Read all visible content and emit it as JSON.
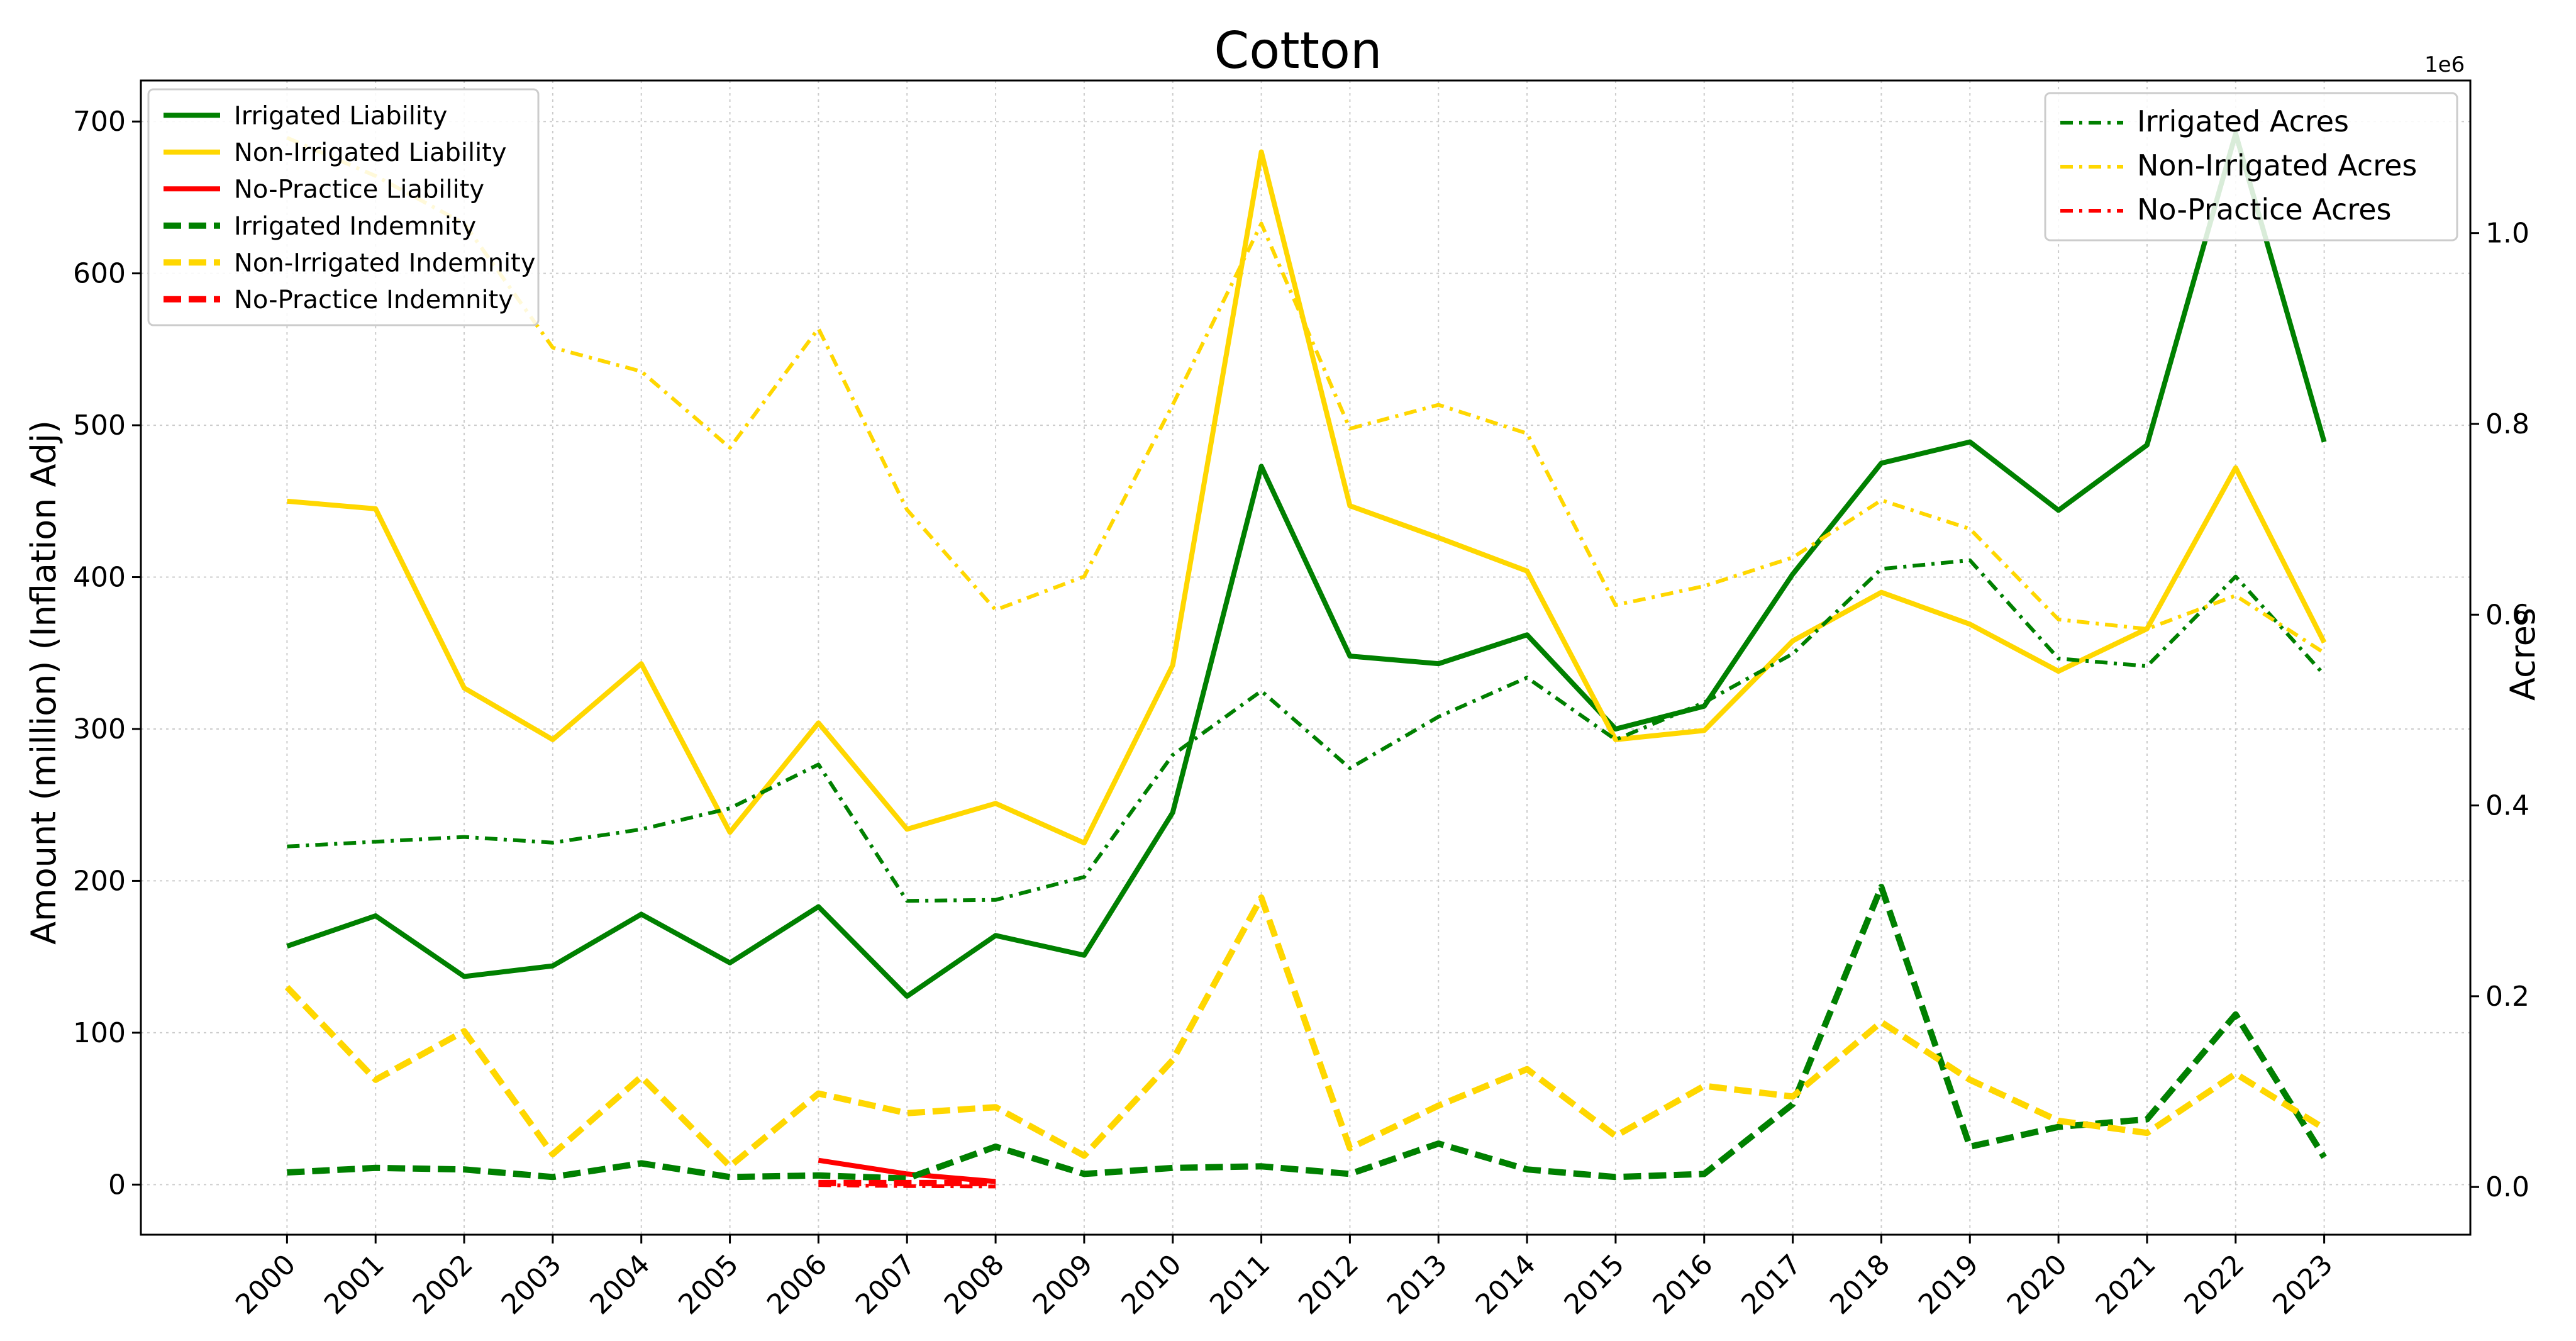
{
  "chart_data": {
    "type": "line",
    "title": "Cotton",
    "xlabel": "",
    "ylabel": "Amount (million) (Inflation Adj)",
    "y2label": "Acres",
    "y2_offset_text": "1e6",
    "ylim": [
      -33,
      727
    ],
    "y2lim": [
      -50000,
      1160000
    ],
    "y2_scale": 1000000,
    "grid": true,
    "x": [
      2000,
      2001,
      2002,
      2003,
      2004,
      2005,
      2006,
      2007,
      2008,
      2009,
      2010,
      2011,
      2012,
      2013,
      2014,
      2015,
      2016,
      2017,
      2018,
      2019,
      2020,
      2021,
      2022,
      2023
    ],
    "x_tick_labels": [
      "2000",
      "2001",
      "2002",
      "2003",
      "2004",
      "2005",
      "2006",
      "2007",
      "2008",
      "2009",
      "2010",
      "2011",
      "2012",
      "2013",
      "2014",
      "2015",
      "2016",
      "2017",
      "2018",
      "2019",
      "2020",
      "2021",
      "2022",
      "2023"
    ],
    "y_ticks": [
      0,
      100,
      200,
      300,
      400,
      500,
      600,
      700
    ],
    "y_tick_labels": [
      "0",
      "100",
      "200",
      "300",
      "400",
      "500",
      "600",
      "700"
    ],
    "y2_ticks": [
      0,
      200000,
      400000,
      600000,
      800000,
      1000000
    ],
    "y2_tick_labels": [
      "0.0",
      "0.2",
      "0.4",
      "0.6",
      "0.8",
      "1.0"
    ],
    "legend_left_position": "upper-left",
    "legend_right_position": "upper-right",
    "series": [
      {
        "name": "Irrigated Liability",
        "axis": "left",
        "color": "#008000",
        "style": "solid",
        "x": [
          2000,
          2001,
          2002,
          2003,
          2004,
          2005,
          2006,
          2007,
          2008,
          2009,
          2010,
          2011,
          2012,
          2013,
          2014,
          2015,
          2016,
          2017,
          2018,
          2019,
          2020,
          2021,
          2022,
          2023
        ],
        "values": [
          157,
          177,
          137,
          144,
          178,
          146,
          183,
          124,
          164,
          151,
          245,
          473,
          348,
          343,
          362,
          300,
          315,
          402,
          475,
          489,
          444,
          487,
          692,
          489
        ]
      },
      {
        "name": "Non-Irrigated Liability",
        "axis": "left",
        "color": "#FFD700",
        "style": "solid",
        "x": [
          2000,
          2001,
          2002,
          2003,
          2004,
          2005,
          2006,
          2007,
          2008,
          2009,
          2010,
          2011,
          2012,
          2013,
          2014,
          2015,
          2016,
          2017,
          2018,
          2019,
          2020,
          2021,
          2022,
          2023
        ],
        "values": [
          450,
          445,
          327,
          293,
          343,
          232,
          304,
          234,
          251,
          225,
          342,
          680,
          447,
          426,
          404,
          293,
          299,
          358,
          390,
          369,
          338,
          366,
          472,
          357
        ]
      },
      {
        "name": "No-Practice Liability",
        "axis": "left",
        "color": "#FF0000",
        "style": "solid",
        "x": [
          2006,
          2007,
          2008
        ],
        "values": [
          16,
          7,
          2
        ]
      },
      {
        "name": "Irrigated Indemnity",
        "axis": "left",
        "color": "#008000",
        "style": "dashed",
        "x": [
          2000,
          2001,
          2002,
          2003,
          2004,
          2005,
          2006,
          2007,
          2008,
          2009,
          2010,
          2011,
          2012,
          2013,
          2014,
          2015,
          2016,
          2017,
          2018,
          2019,
          2020,
          2021,
          2022,
          2023
        ],
        "values": [
          8,
          11,
          10,
          5,
          14,
          5,
          6,
          4,
          25,
          7,
          11,
          12,
          7,
          27,
          10,
          5,
          7,
          53,
          196,
          25,
          38,
          43,
          112,
          18
        ]
      },
      {
        "name": "Non-Irrigated Indemnity",
        "axis": "left",
        "color": "#FFD700",
        "style": "dashed",
        "x": [
          2000,
          2001,
          2002,
          2003,
          2004,
          2005,
          2006,
          2007,
          2008,
          2009,
          2010,
          2011,
          2012,
          2013,
          2014,
          2015,
          2016,
          2017,
          2018,
          2019,
          2020,
          2021,
          2022,
          2023
        ],
        "values": [
          130,
          69,
          101,
          20,
          71,
          12,
          60,
          47,
          51,
          19,
          82,
          189,
          24,
          52,
          76,
          32,
          65,
          58,
          107,
          69,
          42,
          34,
          73,
          37
        ]
      },
      {
        "name": "No-Practice Indemnity",
        "axis": "left",
        "color": "#FF0000",
        "style": "dashed",
        "x": [
          2006,
          2007,
          2008
        ],
        "values": [
          1,
          1,
          1
        ]
      },
      {
        "name": "Irrigated Acres",
        "axis": "right",
        "color": "#008000",
        "style": "dashdot",
        "x": [
          2000,
          2001,
          2002,
          2003,
          2004,
          2005,
          2006,
          2007,
          2008,
          2009,
          2010,
          2011,
          2012,
          2013,
          2014,
          2015,
          2016,
          2017,
          2018,
          2019,
          2020,
          2021,
          2022,
          2023
        ],
        "values": [
          357000,
          362000,
          367000,
          361000,
          375000,
          397000,
          443000,
          300000,
          301000,
          325000,
          453000,
          520000,
          439000,
          493000,
          534000,
          469000,
          508000,
          559000,
          648000,
          657000,
          554000,
          546000,
          640000,
          537000
        ]
      },
      {
        "name": "Non-Irrigated Acres",
        "axis": "right",
        "color": "#FFD700",
        "style": "dashdot",
        "x": [
          2000,
          2001,
          2002,
          2003,
          2004,
          2005,
          2006,
          2007,
          2008,
          2009,
          2010,
          2011,
          2012,
          2013,
          2014,
          2015,
          2016,
          2017,
          2018,
          2019,
          2020,
          2021,
          2022,
          2023
        ],
        "values": [
          1100000,
          1060000,
          1010000,
          880000,
          855000,
          775000,
          900000,
          710000,
          605000,
          640000,
          820000,
          1010000,
          795000,
          820000,
          790000,
          610000,
          630000,
          660000,
          720000,
          690000,
          595000,
          585000,
          620000,
          560000
        ]
      },
      {
        "name": "No-Practice Acres",
        "axis": "right",
        "color": "#FF0000",
        "style": "dashdot",
        "x": [
          2006,
          2007,
          2008
        ],
        "values": [
          2000,
          1000,
          500
        ]
      }
    ]
  }
}
